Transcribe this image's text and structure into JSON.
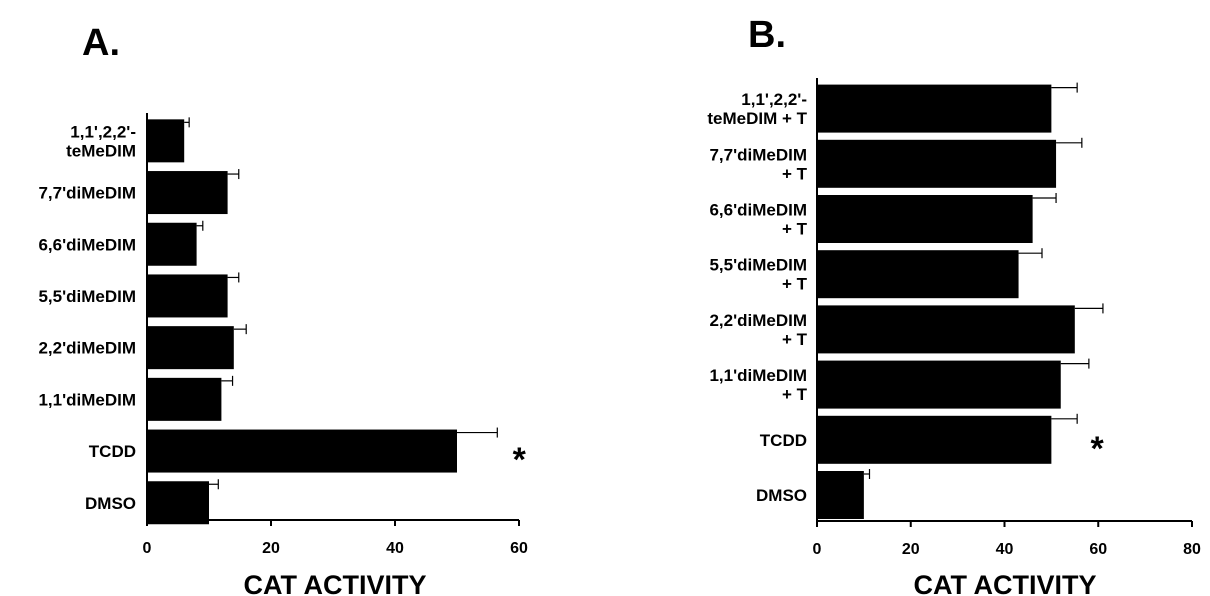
{
  "charts": [
    {
      "panel_label": "A.",
      "type": "bar",
      "orientation": "horizontal",
      "xlabel": "CAT ACTIVITY",
      "xlim": [
        0,
        60
      ],
      "xticks": [
        0,
        20,
        40,
        60
      ],
      "grid": false,
      "legend": "none",
      "bar_color": "#000000",
      "categories": [
        [
          "1,1',2,2'-",
          "teMeDIM"
        ],
        [
          "7,7'diMeDIM"
        ],
        [
          "6,6'diMeDIM"
        ],
        [
          "5,5'diMeDIM"
        ],
        [
          "2,2'diMeDIM"
        ],
        [
          "1,1'diMeDIM"
        ],
        [
          "TCDD"
        ],
        [
          "DMSO"
        ]
      ],
      "values": [
        6,
        13,
        8,
        13,
        14,
        12,
        50,
        10
      ],
      "errors": [
        0.8,
        1.8,
        1.0,
        1.8,
        2.0,
        1.8,
        6.5,
        1.5
      ],
      "significance_marker": "*",
      "significant_category_index": 6
    },
    {
      "panel_label": "B.",
      "type": "bar",
      "orientation": "horizontal",
      "xlabel": "CAT ACTIVITY",
      "xlim": [
        0,
        80
      ],
      "xticks": [
        0,
        20,
        40,
        60,
        80
      ],
      "grid": false,
      "legend": "none",
      "bar_color": "#000000",
      "categories": [
        [
          "1,1',2,2'-",
          "teMeDIM + T"
        ],
        [
          "7,7'diMeDIM",
          "+ T"
        ],
        [
          "6,6'diMeDIM",
          "+ T"
        ],
        [
          "5,5'diMeDIM",
          "+ T"
        ],
        [
          "2,2'diMeDIM",
          "+ T"
        ],
        [
          "1,1'diMeDIM",
          "+ T"
        ],
        [
          "TCDD"
        ],
        [
          "DMSO"
        ]
      ],
      "values": [
        50,
        51,
        46,
        43,
        55,
        52,
        50,
        10
      ],
      "errors": [
        5.5,
        5.5,
        5.0,
        5.0,
        6.0,
        6.0,
        5.5,
        1.2
      ],
      "significance_marker": "*",
      "significant_category_index": 6
    }
  ]
}
